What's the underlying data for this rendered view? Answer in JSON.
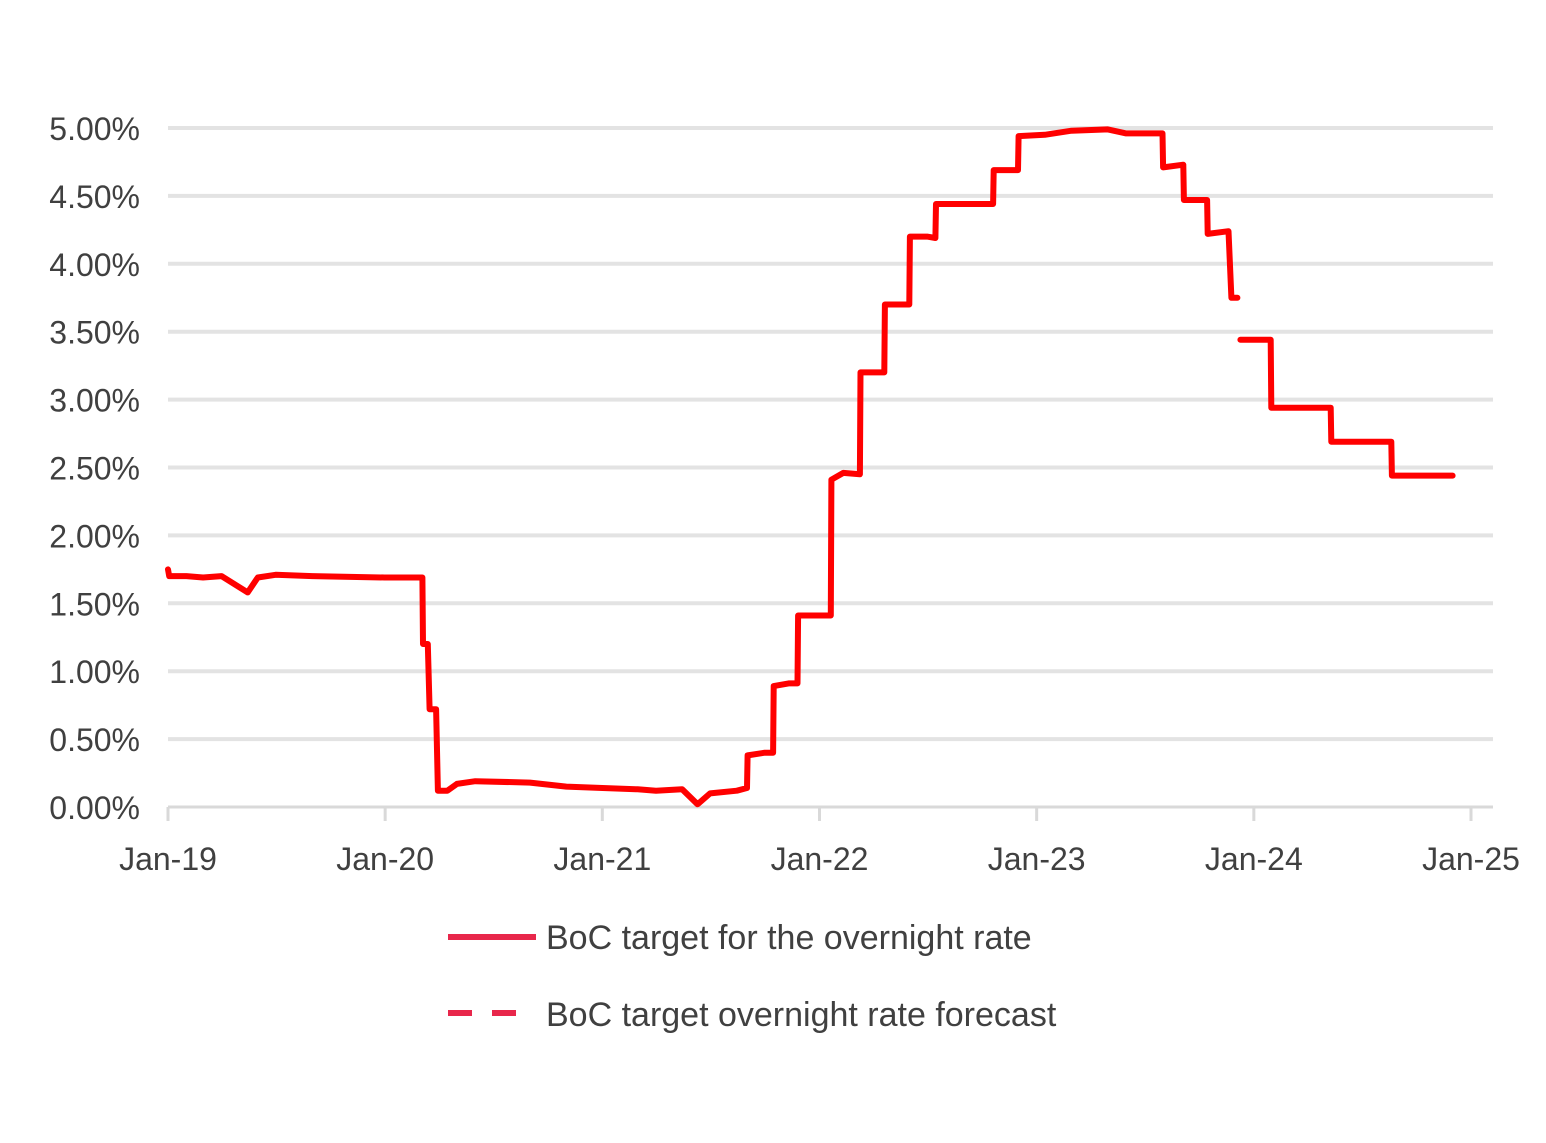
{
  "chart_data": {
    "type": "line",
    "title": "",
    "xlabel": "",
    "ylabel": "",
    "x_ticks": [
      "Jan-19",
      "Jan-20",
      "Jan-21",
      "Jan-22",
      "Jan-23",
      "Jan-24",
      "Jan-25"
    ],
    "x_range": [
      "2019-01-01",
      "2025-01-01"
    ],
    "y_ticks": [
      "0.00%",
      "0.50%",
      "1.00%",
      "1.50%",
      "2.00%",
      "2.50%",
      "3.00%",
      "3.50%",
      "4.00%",
      "4.50%",
      "5.00%"
    ],
    "ylim": [
      0,
      5
    ],
    "grid": "horizontal",
    "legend_placement": "bottom",
    "series": [
      {
        "name": "BoC target for the overnight rate",
        "style": "solid",
        "color": "#ff0000",
        "points": [
          [
            "2019-01-01",
            1.75
          ],
          [
            "2019-01-03",
            1.7
          ],
          [
            "2019-02-01",
            1.7
          ],
          [
            "2019-03-01",
            1.69
          ],
          [
            "2019-04-01",
            1.7
          ],
          [
            "2019-05-15",
            1.58
          ],
          [
            "2019-06-01",
            1.69
          ],
          [
            "2019-07-01",
            1.71
          ],
          [
            "2019-09-01",
            1.7
          ],
          [
            "2019-12-31",
            1.69
          ],
          [
            "2020-03-04",
            1.69
          ],
          [
            "2020-03-05",
            1.2
          ],
          [
            "2020-03-13",
            1.2
          ],
          [
            "2020-03-16",
            0.72
          ],
          [
            "2020-03-27",
            0.72
          ],
          [
            "2020-03-30",
            0.12
          ],
          [
            "2020-04-15",
            0.12
          ],
          [
            "2020-05-01",
            0.17
          ],
          [
            "2020-06-01",
            0.19
          ],
          [
            "2020-09-01",
            0.18
          ],
          [
            "2020-11-01",
            0.15
          ],
          [
            "2021-01-01",
            0.14
          ],
          [
            "2021-03-01",
            0.13
          ],
          [
            "2021-04-01",
            0.12
          ],
          [
            "2021-05-15",
            0.13
          ],
          [
            "2021-06-10",
            0.02
          ],
          [
            "2021-07-01",
            0.1
          ],
          [
            "2021-08-15",
            0.12
          ],
          [
            "2021-09-01",
            0.14
          ],
          [
            "2021-09-02",
            0.38
          ],
          [
            "2021-10-01",
            0.4
          ],
          [
            "2021-10-15",
            0.4
          ],
          [
            "2021-10-16",
            0.89
          ],
          [
            "2021-11-10",
            0.91
          ],
          [
            "2021-11-25",
            0.91
          ],
          [
            "2021-11-26",
            1.41
          ],
          [
            "2022-01-20",
            1.41
          ],
          [
            "2022-01-21",
            2.41
          ],
          [
            "2022-02-10",
            2.46
          ],
          [
            "2022-03-10",
            2.45
          ],
          [
            "2022-03-11",
            3.2
          ],
          [
            "2022-04-20",
            3.2
          ],
          [
            "2022-04-21",
            3.7
          ],
          [
            "2022-06-01",
            3.7
          ],
          [
            "2022-06-02",
            4.2
          ],
          [
            "2022-07-01",
            4.2
          ],
          [
            "2022-07-15",
            4.19
          ],
          [
            "2022-07-16",
            4.44
          ],
          [
            "2022-09-10",
            4.44
          ],
          [
            "2022-10-20",
            4.44
          ],
          [
            "2022-10-21",
            4.69
          ],
          [
            "2022-12-01",
            4.69
          ],
          [
            "2022-12-02",
            4.94
          ],
          [
            "2023-01-15",
            4.95
          ],
          [
            "2023-03-01",
            4.98
          ],
          [
            "2023-05-01",
            4.99
          ],
          [
            "2023-06-01",
            4.96
          ],
          [
            "2023-08-01",
            4.96
          ],
          [
            "2023-08-02",
            4.71
          ],
          [
            "2023-09-05",
            4.73
          ],
          [
            "2023-09-06",
            4.47
          ],
          [
            "2023-10-15",
            4.47
          ],
          [
            "2023-10-16",
            4.22
          ],
          [
            "2023-11-20",
            4.24
          ],
          [
            "2023-11-25",
            3.75
          ],
          [
            "2023-12-05",
            3.75
          ]
        ]
      },
      {
        "name": "BoC target overnight rate forecast",
        "style": "dashed",
        "color": "#e8274b",
        "points": [
          [
            "2023-12-10",
            3.44
          ],
          [
            "2024-01-30",
            3.44
          ],
          [
            "2024-01-31",
            2.94
          ],
          [
            "2024-05-10",
            2.94
          ],
          [
            "2024-05-11",
            2.69
          ],
          [
            "2024-08-20",
            2.69
          ],
          [
            "2024-08-21",
            2.44
          ],
          [
            "2024-12-01",
            2.44
          ]
        ]
      }
    ]
  }
}
